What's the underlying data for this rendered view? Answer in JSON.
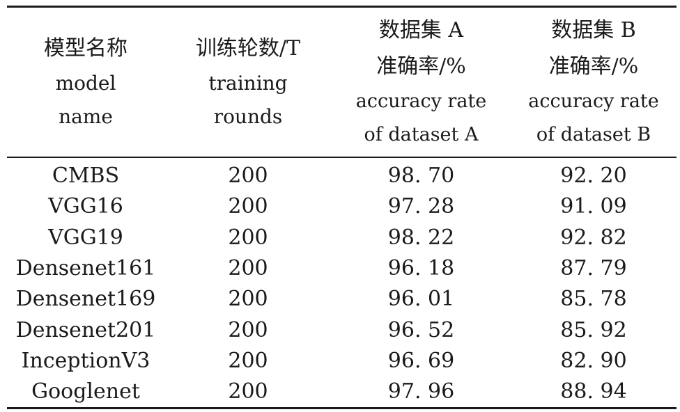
{
  "table": {
    "headers": [
      {
        "lines": [
          "模型名称",
          "model",
          "name"
        ]
      },
      {
        "lines": [
          "训练轮数/T",
          "training",
          "rounds"
        ]
      },
      {
        "lines": [
          "数据集 A",
          "准确率/%",
          "accuracy rate",
          "of dataset A"
        ]
      },
      {
        "lines": [
          "数据集 B",
          "准确率/%",
          "accuracy rate",
          "of dataset B"
        ]
      }
    ],
    "rows": [
      [
        "CMBS",
        "200",
        "98. 70",
        "92. 20"
      ],
      [
        "VGG16",
        "200",
        "97. 28",
        "91. 09"
      ],
      [
        "VGG19",
        "200",
        "98. 22",
        "92. 82"
      ],
      [
        "Densenet161",
        "200",
        "96. 18",
        "87. 79"
      ],
      [
        "Densenet169",
        "200",
        "96. 01",
        "85. 78"
      ],
      [
        "Densenet201",
        "200",
        "96. 52",
        "85. 92"
      ],
      [
        "InceptionV3",
        "200",
        "96. 69",
        "82. 90"
      ],
      [
        "Googlenet",
        "200",
        "97. 96",
        "88. 94"
      ]
    ]
  }
}
